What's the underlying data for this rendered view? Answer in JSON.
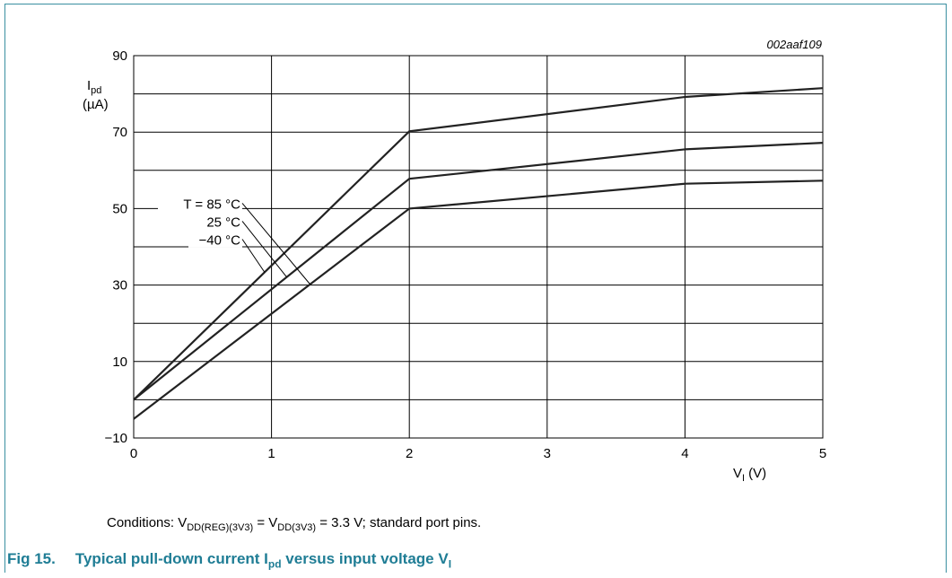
{
  "chart_data": {
    "type": "line",
    "figure_id": "002aaf109",
    "ylabel": "I",
    "ylabel_sub": "pd",
    "ylabel_unit": "(µA)",
    "xlabel": "V",
    "xlabel_sub": "I",
    "xlabel_unit": "(V)",
    "xlim": [
      0,
      5
    ],
    "ylim": [
      -10,
      90
    ],
    "xticks": [
      0,
      1,
      2,
      3,
      4,
      5
    ],
    "yticks": [
      -10,
      10,
      30,
      50,
      70,
      90
    ],
    "ytick_labels": [
      "−10",
      "10",
      "30",
      "50",
      "70",
      "90"
    ],
    "grid": true,
    "series": [
      {
        "name": "T = 85 °C",
        "x": [
          0,
          2,
          4,
          5
        ],
        "y": [
          -5,
          50,
          56.5,
          57.3
        ]
      },
      {
        "name": "25 °C",
        "x": [
          0,
          2,
          4,
          5
        ],
        "y": [
          0,
          57.8,
          65.5,
          67.2
        ]
      },
      {
        "name": "−40 °C",
        "x": [
          0,
          2,
          4,
          5
        ],
        "y": [
          0,
          70.2,
          79.2,
          81.5
        ]
      }
    ]
  },
  "conditions": {
    "prefix": "Conditions: V",
    "sub1": "DD(REG)(3V3)",
    "mid": " = V",
    "sub2": "DD(3V3)",
    "suffix": " = 3.3 V; standard port pins."
  },
  "caption": {
    "label": "Fig 15.",
    "text_a": "Typical pull-down current I",
    "sub_a": "pd",
    "text_b": " versus input voltage V",
    "sub_b": "I"
  }
}
